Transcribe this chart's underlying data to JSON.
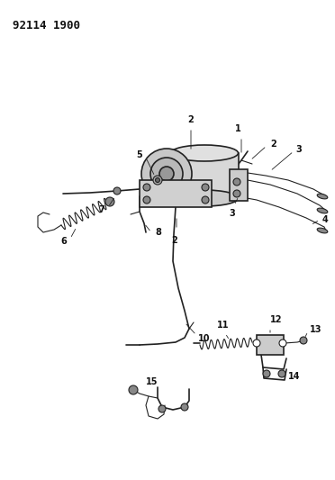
{
  "title": "92114 1900",
  "bg_color": "#ffffff",
  "line_color": "#222222",
  "label_color": "#111111",
  "title_fontsize": 9,
  "label_fontsize": 7,
  "figsize": [
    3.72,
    5.33
  ],
  "dpi": 100
}
